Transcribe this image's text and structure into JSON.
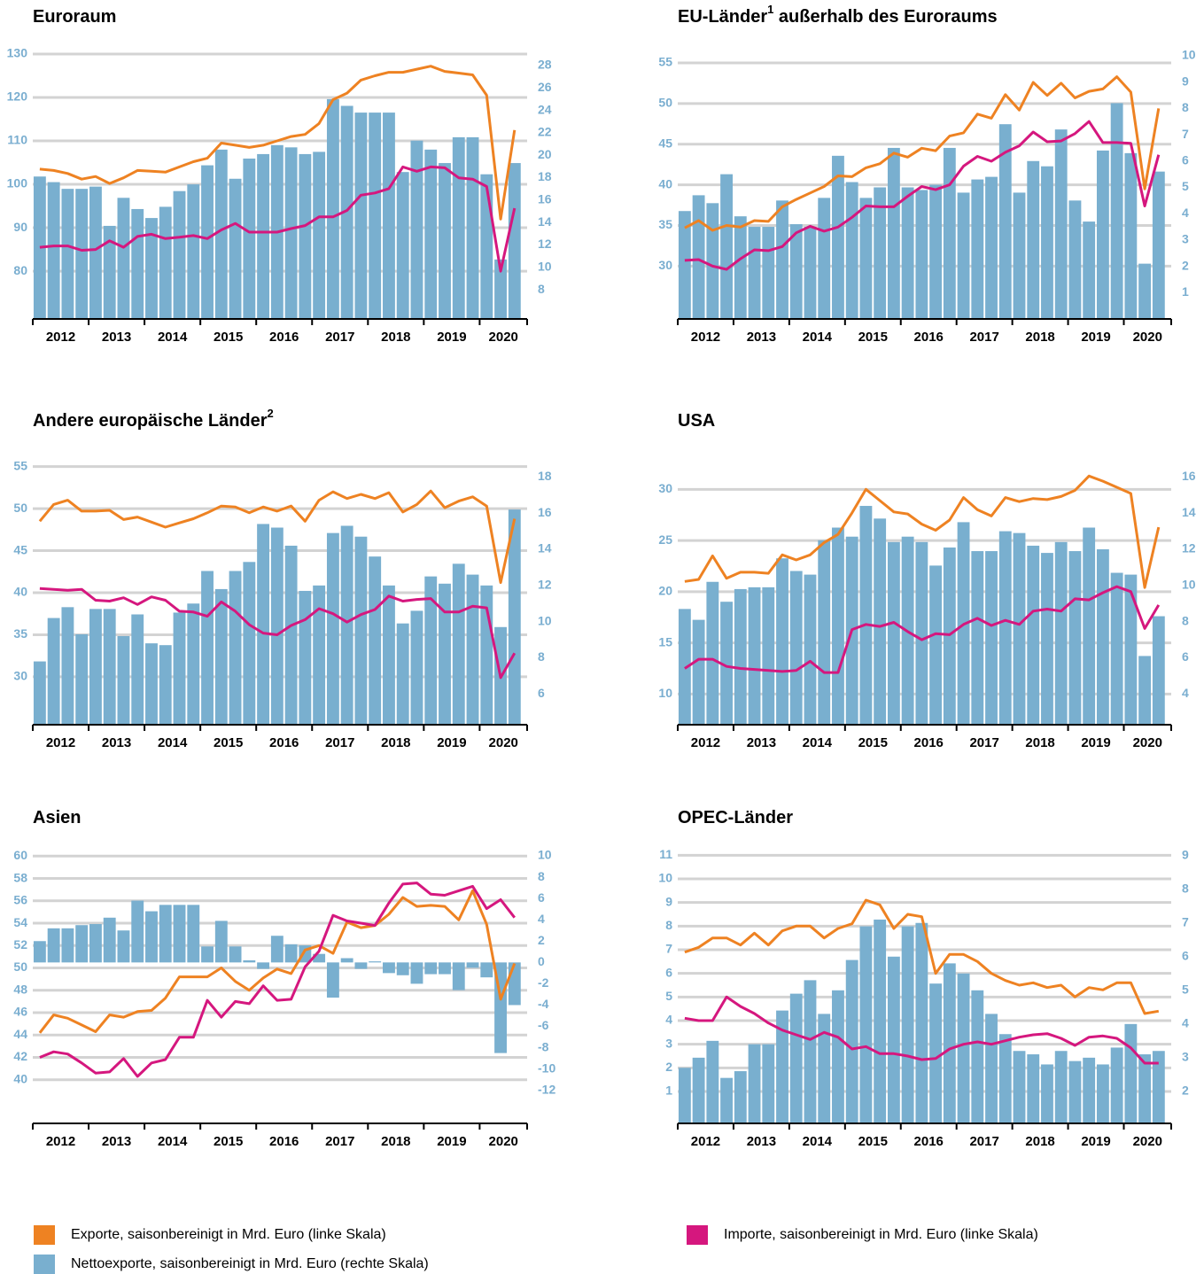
{
  "chart_data": [
    {
      "type": "bar_line",
      "title": "Euroraum",
      "xticks": [
        "2012",
        "2013",
        "2014",
        "2015",
        "2016",
        "2017",
        "2018",
        "2019",
        "2020"
      ],
      "ylim": [
        69,
        130.2
      ],
      "yticks": [
        80,
        90,
        100,
        110,
        120,
        130
      ],
      "y2lim": [
        5.4,
        29.1
      ],
      "y2ticks": [
        8,
        10,
        12,
        14,
        16,
        18,
        20,
        22,
        24,
        26,
        28
      ],
      "grid": true,
      "series": [
        {
          "name": "Exporte, saisonbereinigt in Mrd. Euro (linke Skala)",
          "type": "line",
          "color": "#ee8222",
          "values": [
            103.5,
            103.2,
            102.5,
            101.2,
            101.8,
            100.2,
            101.5,
            103.2,
            103,
            102.8,
            104,
            105.2,
            106,
            109.5,
            109,
            108.5,
            109,
            110,
            111,
            111.5,
            114,
            119.5,
            121,
            124,
            125,
            125.8,
            125.8,
            126.5,
            127.2,
            126,
            125.6,
            125.2,
            120.5,
            92,
            112.5
          ]
        },
        {
          "name": "Importe, saisonbereinigt in Mrd. Euro (linke Skala)",
          "type": "line",
          "color": "#d5177e",
          "values": [
            85.5,
            85.8,
            85.8,
            84.8,
            85,
            87,
            85.5,
            88,
            88.5,
            87.5,
            87.8,
            88.2,
            87.5,
            89.5,
            91,
            89,
            89,
            89,
            89.8,
            90.5,
            92.5,
            92.5,
            94,
            97.5,
            98,
            99,
            104,
            103,
            104,
            103.8,
            101.5,
            101.2,
            99.5,
            80,
            94.5
          ]
        },
        {
          "name": "Nettoexporte, saisonbereinigt in Mrd. Euro (rechte Skala)",
          "type": "bar",
          "axis": "y2",
          "color": "#79afcf",
          "values": [
            18.1,
            17.6,
            17.0,
            17.0,
            17.2,
            13.7,
            16.2,
            15.2,
            14.4,
            15.4,
            16.8,
            17.4,
            19.1,
            20.5,
            17.9,
            19.7,
            20.1,
            20.9,
            20.7,
            20.1,
            20.3,
            25.0,
            24.4,
            23.8,
            23.8,
            23.8,
            18.5,
            21.3,
            20.5,
            19.3,
            21.6,
            21.6,
            18.3,
            10.7,
            19.3
          ]
        }
      ]
    },
    {
      "type": "bar_line",
      "title": "EU-Länder",
      "title_sup": "1",
      "title_suffix": " außerhalb des Euroraums",
      "xticks": [
        "2012",
        "2013",
        "2014",
        "2015",
        "2016",
        "2017",
        "2018",
        "2019",
        "2020"
      ],
      "ylim": [
        23.5,
        56.2
      ],
      "yticks": [
        30,
        35,
        40,
        45,
        50,
        55
      ],
      "y2lim": [
        0,
        10.1
      ],
      "y2ticks": [
        1,
        2,
        3,
        4,
        5,
        6,
        7,
        8,
        9,
        10
      ],
      "grid": true,
      "series": [
        {
          "name": "Exporte, saisonbereinigt in Mrd. Euro (linke Skala)",
          "type": "line",
          "color": "#ee8222",
          "values": [
            34.7,
            35.6,
            34.4,
            35.0,
            34.8,
            35.6,
            35.5,
            37.3,
            38.2,
            39.0,
            39.8,
            41.1,
            41.0,
            42.1,
            42.6,
            43.9,
            43.4,
            44.5,
            44.2,
            46.0,
            46.4,
            48.7,
            48.2,
            51.1,
            49.2,
            52.6,
            51.0,
            52.5,
            50.7,
            51.5,
            51.8,
            53.3,
            51.4,
            39.5,
            49.4
          ]
        },
        {
          "name": "Importe, saisonbereinigt in Mrd. Euro (linke Skala)",
          "type": "line",
          "color": "#d5177e",
          "values": [
            30.7,
            30.8,
            30.0,
            29.6,
            30.9,
            32.0,
            31.9,
            32.4,
            34.1,
            34.9,
            34.3,
            34.8,
            36.0,
            37.4,
            37.3,
            37.3,
            38.6,
            39.8,
            39.4,
            40.0,
            42.3,
            43.5,
            42.9,
            44.0,
            44.8,
            46.5,
            45.3,
            45.4,
            46.3,
            47.8,
            45.2,
            45.2,
            45.1,
            37.4,
            43.7
          ]
        },
        {
          "name": "Nettoexporte, saisonbereinigt in Mrd. Euro (rechte Skala)",
          "type": "bar",
          "axis": "y2",
          "color": "#79afcf",
          "values": [
            4.1,
            4.7,
            4.4,
            5.5,
            3.9,
            3.5,
            3.5,
            4.5,
            3.6,
            3.5,
            4.6,
            6.2,
            5.2,
            4.6,
            5.0,
            6.5,
            5.0,
            4.9,
            5.1,
            6.5,
            4.8,
            5.3,
            5.4,
            7.4,
            4.8,
            6.0,
            5.8,
            7.2,
            4.5,
            3.7,
            6.4,
            8.2,
            6.3,
            2.1,
            5.6
          ]
        }
      ]
    },
    {
      "type": "bar_line",
      "title": "Andere europäische Länder",
      "title_sup": "2",
      "xticks": [
        "2012",
        "2013",
        "2014",
        "2015",
        "2016",
        "2017",
        "2018",
        "2019",
        "2020"
      ],
      "ylim": [
        24.3,
        55.7
      ],
      "yticks": [
        30,
        35,
        40,
        45,
        50,
        55
      ],
      "y2lim": [
        4.3,
        18.9
      ],
      "y2ticks": [
        6,
        8,
        10,
        12,
        14,
        16,
        18
      ],
      "grid": true,
      "series": [
        {
          "name": "Exporte, saisonbereinigt in Mrd. Euro (linke Skala)",
          "type": "line",
          "color": "#ee8222",
          "values": [
            48.5,
            50.5,
            51,
            49.7,
            49.7,
            49.8,
            48.7,
            49,
            48.4,
            47.8,
            48.3,
            48.8,
            49.5,
            50.3,
            50.2,
            49.5,
            50.2,
            49.7,
            50.3,
            48.5,
            51,
            52,
            51.2,
            51.7,
            51.2,
            51.9,
            49.6,
            50.5,
            52.1,
            50.1,
            50.9,
            51.4,
            50.3,
            41.2,
            48.8
          ]
        },
        {
          "name": "Importe, saisonbereinigt in Mrd. Euro (linke Skala)",
          "type": "line",
          "color": "#d5177e",
          "values": [
            40.5,
            40.4,
            40.3,
            40.4,
            39.1,
            39.0,
            39.4,
            38.6,
            39.5,
            39.1,
            37.8,
            37.7,
            37.2,
            38.9,
            37.8,
            36.2,
            35.2,
            35.0,
            36.1,
            36.8,
            38.1,
            37.5,
            36.5,
            37.4,
            38.0,
            39.6,
            39.0,
            39.2,
            39.3,
            37.7,
            37.7,
            38.4,
            38.2,
            29.9,
            32.8
          ]
        },
        {
          "name": "Nettoexporte, saisonbereinigt in Mrd. Euro (rechte Skala)",
          "type": "bar",
          "axis": "y2",
          "color": "#79afcf",
          "values": [
            7.8,
            10.2,
            10.8,
            9.3,
            10.7,
            10.7,
            9.2,
            10.4,
            8.8,
            8.7,
            10.5,
            11.0,
            12.8,
            11.8,
            12.8,
            13.3,
            15.4,
            15.2,
            14.2,
            11.7,
            12.0,
            14.9,
            15.3,
            14.7,
            13.6,
            12.0,
            9.9,
            10.6,
            12.5,
            12.1,
            13.2,
            12.6,
            12.0,
            9.7,
            16.2
          ]
        }
      ]
    },
    {
      "type": "bar_line",
      "title": "USA",
      "xticks": [
        "2012",
        "2013",
        "2014",
        "2015",
        "2016",
        "2017",
        "2018",
        "2019",
        "2020"
      ],
      "ylim": [
        7,
        32.8
      ],
      "yticks": [
        10,
        15,
        20,
        25,
        30
      ],
      "y2lim": [
        2.3,
        16.9
      ],
      "y2ticks": [
        4,
        6,
        8,
        10,
        12,
        14,
        16
      ],
      "grid": true,
      "series": [
        {
          "name": "Exporte, saisonbereinigt in Mrd. Euro (linke Skala)",
          "type": "line",
          "color": "#ee8222",
          "values": [
            21,
            21.2,
            23.5,
            21.3,
            21.9,
            21.9,
            21.8,
            23.6,
            23.1,
            23.6,
            24.8,
            25.6,
            27.7,
            30,
            28.9,
            27.8,
            27.6,
            26.6,
            26,
            27,
            29.2,
            28,
            27.4,
            29.2,
            28.8,
            29.1,
            29,
            29.3,
            29.9,
            31.3,
            30.8,
            30.2,
            29.6,
            20.4,
            26.3
          ]
        },
        {
          "name": "Importe, saisonbereinigt in Mrd. Euro (linke Skala)",
          "type": "line",
          "color": "#d5177e",
          "values": [
            12.5,
            13.4,
            13.4,
            12.7,
            12.5,
            12.4,
            12.3,
            12.2,
            12.3,
            13.2,
            12.1,
            12.1,
            16.3,
            16.8,
            16.6,
            17,
            16.1,
            15.3,
            15.9,
            15.8,
            16.8,
            17.4,
            16.7,
            17.2,
            16.8,
            18.1,
            18.3,
            18.1,
            19.3,
            19.2,
            19.9,
            20.5,
            20,
            16.4,
            18.7
          ]
        },
        {
          "name": "Nettoexporte, saisonbereinigt in Mrd. Euro (rechte Skala)",
          "type": "bar",
          "axis": "y2",
          "color": "#79afcf",
          "values": [
            8.7,
            8.1,
            10.2,
            9.1,
            9.8,
            9.9,
            9.9,
            11.5,
            10.8,
            10.6,
            12.5,
            13.2,
            12.7,
            14.4,
            13.7,
            12.4,
            12.7,
            12.4,
            11.1,
            12.1,
            13.5,
            11.9,
            11.9,
            13.0,
            12.9,
            12.2,
            11.8,
            12.4,
            11.9,
            13.2,
            12.0,
            10.7,
            10.6,
            6.1,
            8.3
          ]
        }
      ]
    },
    {
      "type": "bar_line",
      "title": "Asien",
      "xticks": [
        "2012",
        "2013",
        "2014",
        "2015",
        "2016",
        "2017",
        "2018",
        "2019",
        "2020"
      ],
      "ylim": [
        36.1,
        60.5
      ],
      "yticks": [
        40,
        42,
        44,
        46,
        48,
        50,
        52,
        54,
        56,
        58,
        60
      ],
      "y2lim": [
        -15.1,
        10.5
      ],
      "y2ticks": [
        -12,
        -10,
        -8,
        -6,
        -4,
        -2,
        0,
        2,
        4,
        6,
        8,
        10
      ],
      "grid": true,
      "series": [
        {
          "name": "Exporte, saisonbereinigt in Mrd. Euro (linke Skala)",
          "type": "line",
          "color": "#ee8222",
          "values": [
            44.2,
            45.8,
            45.5,
            44.9,
            44.3,
            45.8,
            45.6,
            46.1,
            46.2,
            47.3,
            49.2,
            49.2,
            49.2,
            50,
            48.8,
            48,
            49.1,
            49.9,
            49.5,
            51.6,
            52,
            51.3,
            54.1,
            53.6,
            53.8,
            54.8,
            56.3,
            55.5,
            55.6,
            55.5,
            54.3,
            56.9,
            53.9,
            47.2,
            50.4
          ]
        },
        {
          "name": "Importe, saisonbereinigt in Mrd. Euro (linke Skala)",
          "type": "line",
          "color": "#d5177e",
          "values": [
            42,
            42.5,
            42.3,
            41.5,
            40.6,
            40.7,
            41.9,
            40.3,
            41.5,
            41.8,
            43.8,
            43.8,
            47.1,
            45.6,
            47,
            46.8,
            48.4,
            47.1,
            47.2,
            50.1,
            51.5,
            54.7,
            54.2,
            54,
            53.8,
            55.8,
            57.5,
            57.6,
            56.6,
            56.5,
            56.9,
            57.3,
            55.3,
            56.1,
            54.5
          ]
        },
        {
          "name": "Nettoexporte, saisonbereinigt in Mrd. Euro (rechte Skala)",
          "type": "bar",
          "axis": "y2",
          "color": "#79afcf",
          "values": [
            2.0,
            3.2,
            3.2,
            3.5,
            3.6,
            4.2,
            3.0,
            5.8,
            4.8,
            5.4,
            5.4,
            5.4,
            1.5,
            3.9,
            1.5,
            0.2,
            -0.6,
            2.5,
            1.7,
            1.6,
            0.8,
            -3.3,
            0.4,
            -0.6,
            0.1,
            -1.0,
            -1.2,
            -2.0,
            -1.1,
            -1.1,
            -2.6,
            -0.5,
            -1.4,
            -8.5,
            -4.0
          ]
        }
      ]
    },
    {
      "type": "bar_line",
      "title": "OPEC-Länder",
      "xticks": [
        "2012",
        "2013",
        "2014",
        "2015",
        "2016",
        "2017",
        "2018",
        "2019",
        "2020"
      ],
      "ylim": [
        -0.35,
        11.2
      ],
      "yticks": [
        1,
        2,
        3,
        4,
        5,
        6,
        7,
        8,
        9,
        10,
        11
      ],
      "y2lim": [
        1.05,
        9.15
      ],
      "y2ticks": [
        2,
        3,
        4,
        5,
        6,
        7,
        8,
        9
      ],
      "grid": true,
      "series": [
        {
          "name": "Exporte, saisonbereinigt in Mrd. Euro (linke Skala)",
          "type": "line",
          "color": "#ee8222",
          "values": [
            6.9,
            7.1,
            7.5,
            7.5,
            7.2,
            7.7,
            7.2,
            7.8,
            8.0,
            8.0,
            7.5,
            7.9,
            8.1,
            9.1,
            8.9,
            7.9,
            8.5,
            8.4,
            6.0,
            6.8,
            6.8,
            6.5,
            6.0,
            5.7,
            5.5,
            5.6,
            5.4,
            5.5,
            5.0,
            5.4,
            5.3,
            5.6,
            5.6,
            4.3,
            4.4
          ]
        },
        {
          "name": "Importe, saisonbereinigt in Mrd. Euro (linke Skala)",
          "type": "line",
          "color": "#d5177e",
          "values": [
            4.1,
            4.0,
            4.0,
            5.0,
            4.6,
            4.3,
            3.9,
            3.6,
            3.4,
            3.2,
            3.5,
            3.3,
            2.8,
            2.9,
            2.6,
            2.6,
            2.5,
            2.35,
            2.4,
            2.8,
            3.0,
            3.1,
            3.0,
            3.15,
            3.3,
            3.4,
            3.45,
            3.25,
            2.95,
            3.3,
            3.35,
            3.25,
            2.85,
            2.2,
            2.2
          ]
        },
        {
          "name": "Nettoexporte, saisonbereinigt in Mrd. Euro (rechte Skala)",
          "type": "bar",
          "axis": "y2",
          "color": "#79afcf",
          "values": [
            2.7,
            3.0,
            3.5,
            2.4,
            2.6,
            3.4,
            3.4,
            4.4,
            4.9,
            5.3,
            4.3,
            5.0,
            5.9,
            6.9,
            7.1,
            6.0,
            6.9,
            7.0,
            5.2,
            5.8,
            5.5,
            5.0,
            4.3,
            3.7,
            3.2,
            3.1,
            2.8,
            3.2,
            2.9,
            3.0,
            2.8,
            3.3,
            4.0,
            3.1,
            3.2
          ]
        }
      ]
    }
  ]
}
